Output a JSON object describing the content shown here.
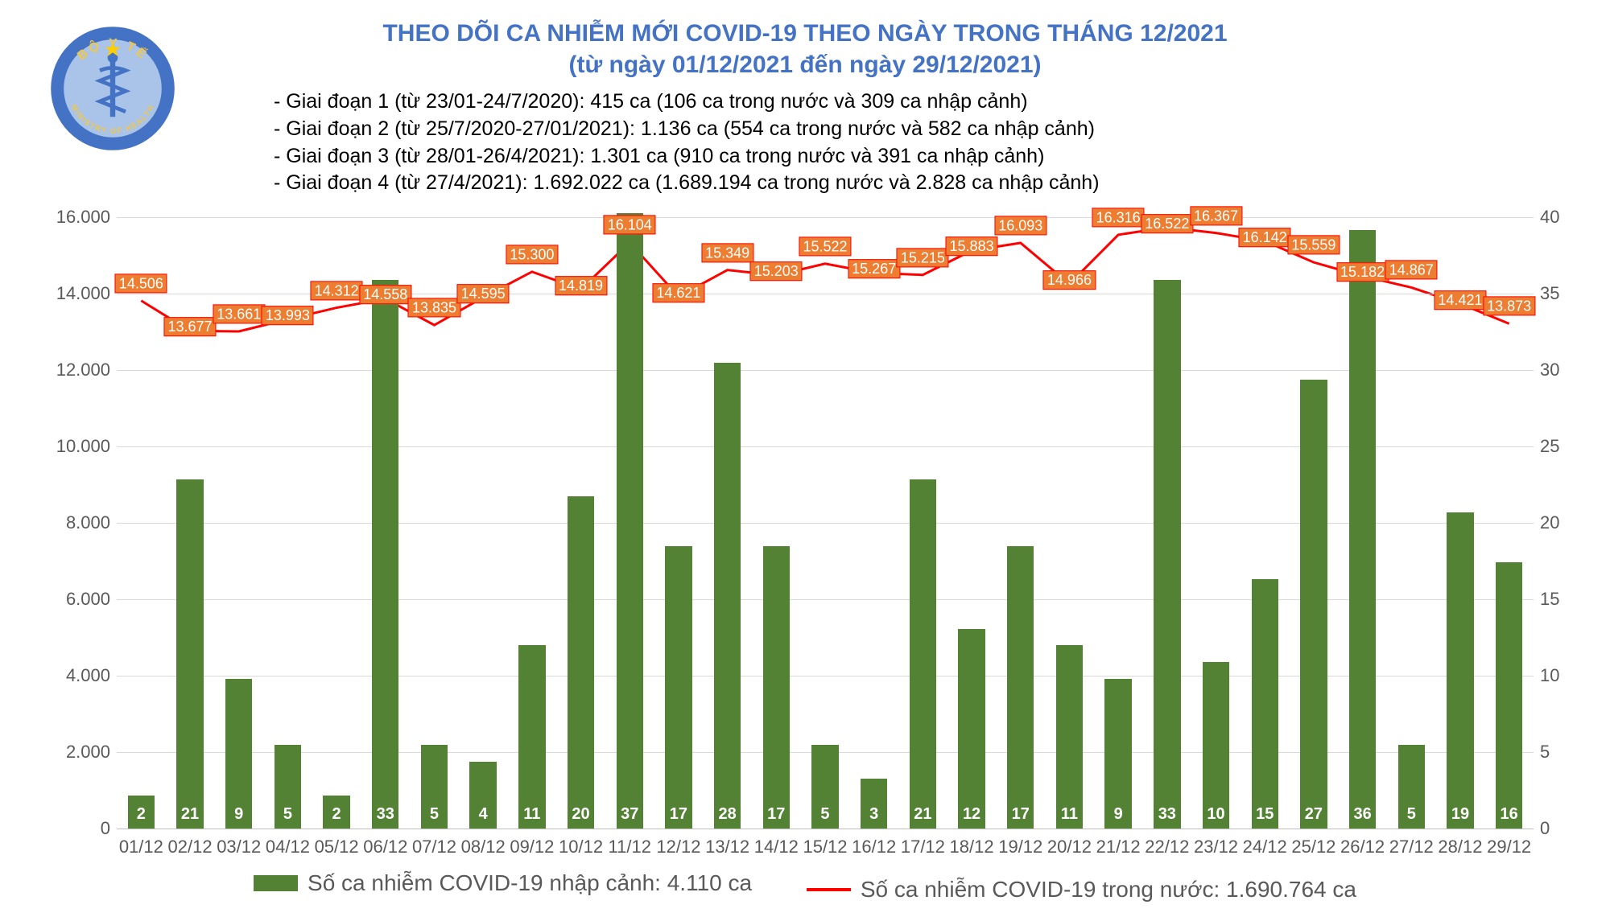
{
  "logo": {
    "outer_ring": "#4472c4",
    "inner_fill": "#a9c4e8",
    "accent": "#f2c748",
    "flag_red": "#da251d",
    "flag_yellow": "#ffcd00",
    "top_text": "BỘ Y TẾ",
    "bottom_text": "MINISTRY OF HEALTH"
  },
  "title": {
    "line1": "THEO DÕI CA NHIỄM MỚI COVID-19 THEO NGÀY TRONG THÁNG 12/2021",
    "line2": "(từ ngày 01/12/2021 đến ngày 29/12/2021)",
    "color": "#4472c4",
    "fontsize": 30
  },
  "notes": [
    "- Giai đoạn 1 (từ 23/01-24/7/2020): 415 ca (106 ca trong nước và 309 ca nhập cảnh)",
    "- Giai đoạn 2 (từ 25/7/2020-27/01/2021): 1.136 ca (554 ca trong nước và 582 ca nhập cảnh)",
    "- Giai đoạn 3 (từ 28/01-26/4/2021): 1.301 ca (910 ca trong nước và 391 ca nhập cảnh)",
    "- Giai đoạn 4 (từ 27/4/2021): 1.692.022 ca (1.689.194 ca trong nước và 2.828 ca nhập cảnh)"
  ],
  "notes_fontsize": 25,
  "notes_color": "#000000",
  "chart": {
    "type": "bar+line",
    "background_color": "#ffffff",
    "grid_color": "#d9d9d9",
    "axis_color": "#bfbfbf",
    "tick_color": "#595959",
    "tick_fontsize": 22,
    "bar_color": "#548235",
    "bar_width_ratio": 0.55,
    "bar_label_color": "#ffffff",
    "bar_label_fontsize": 20,
    "line_color": "#ff0000",
    "line_width": 3,
    "line_label_bg": "#ed7d31",
    "line_label_border": "#ff0000",
    "line_label_color": "#ffffff",
    "line_label_fontsize": 18,
    "y_left": {
      "min": 0,
      "max": 16000,
      "step": 2000
    },
    "y_right": {
      "min": 0,
      "max": 40,
      "step": 5
    },
    "categories": [
      "01/12",
      "02/12",
      "03/12",
      "04/12",
      "05/12",
      "06/12",
      "07/12",
      "08/12",
      "09/12",
      "10/12",
      "11/12",
      "12/12",
      "13/12",
      "14/12",
      "15/12",
      "16/12",
      "17/12",
      "18/12",
      "19/12",
      "20/12",
      "21/12",
      "22/12",
      "23/12",
      "24/12",
      "25/12",
      "26/12",
      "27/12",
      "28/12",
      "29/12"
    ],
    "bars": {
      "labels": [
        "2",
        "21",
        "9",
        "5",
        "2",
        "33",
        "5",
        "4",
        "11",
        "20",
        "37",
        "17",
        "28",
        "17",
        "5",
        "3",
        "21",
        "12",
        "17",
        "11",
        "9",
        "33",
        "10",
        "15",
        "27",
        "36",
        "5",
        "19",
        "16"
      ],
      "heights": [
        870,
        9130,
        3920,
        2180,
        870,
        14360,
        2180,
        1740,
        4790,
        8700,
        16100,
        7400,
        12180,
        7400,
        2180,
        1310,
        9130,
        5220,
        7400,
        4790,
        3920,
        14360,
        4360,
        6530,
        11750,
        15660,
        2180,
        8270,
        6960
      ]
    },
    "line": {
      "labels": [
        "14.506",
        "13.677",
        "13.661",
        "13.993",
        "14.312",
        "14.558",
        "13.835",
        "14.595",
        "15.300",
        "14.819",
        "16.104",
        "14.621",
        "15.349",
        "15.203",
        "15.522",
        "15.267",
        "15.215",
        "15.883",
        "16.093",
        "14.966",
        "16.316",
        "16.522",
        "16.367",
        "16.142",
        "15.559",
        "15.182",
        "14.867",
        "14.421",
        "13.873"
      ],
      "values": [
        14506,
        13677,
        13661,
        13993,
        14312,
        14558,
        13835,
        14595,
        15300,
        14819,
        16104,
        14621,
        15349,
        15203,
        15522,
        15267,
        15215,
        15883,
        16093,
        14966,
        16316,
        16522,
        16367,
        16142,
        15559,
        15182,
        14867,
        14421,
        13873
      ],
      "scale_max": 16800
    }
  },
  "legend": {
    "bar_text": "Số ca nhiễm COVID-19 nhập cảnh: 4.110 ca",
    "line_text": "Số ca nhiễm COVID-19 trong nước: 1.690.764 ca",
    "fontsize": 28,
    "color": "#595959"
  }
}
